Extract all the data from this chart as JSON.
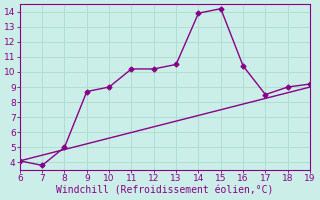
{
  "xlabel": "Windchill (Refroidissement éolien,°C)",
  "bg_color": "#cceee8",
  "line_color": "#880088",
  "marker": "D",
  "marker_size": 2.5,
  "line_width": 1.0,
  "xlim": [
    6,
    19
  ],
  "ylim": [
    3.5,
    14.5
  ],
  "xticks": [
    6,
    7,
    8,
    9,
    10,
    11,
    12,
    13,
    14,
    15,
    16,
    17,
    18,
    19
  ],
  "yticks": [
    4,
    5,
    6,
    7,
    8,
    9,
    10,
    11,
    12,
    13,
    14
  ],
  "grid_color": "#aaddcc",
  "curve1_x": [
    6,
    7,
    8,
    9,
    10,
    11,
    12,
    13,
    14,
    15,
    16,
    17,
    18,
    19
  ],
  "curve1_y": [
    4.1,
    3.8,
    5.0,
    8.7,
    9.0,
    10.2,
    10.2,
    10.5,
    13.9,
    14.2,
    10.4,
    8.5,
    9.0,
    9.2
  ],
  "curve2_x": [
    6,
    19
  ],
  "curve2_y": [
    4.1,
    9.0
  ],
  "tick_fontsize": 6.5,
  "label_fontsize": 7.0
}
